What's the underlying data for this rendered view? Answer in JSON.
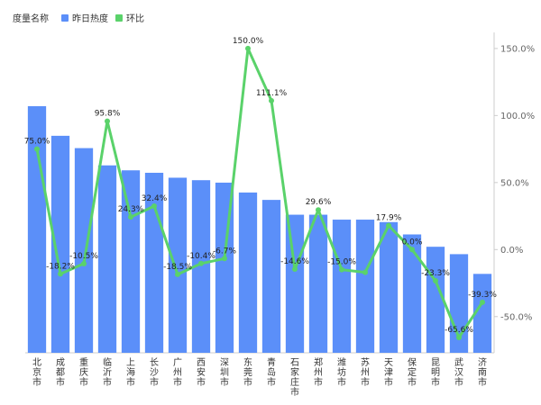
{
  "chart_data": {
    "type": "bar",
    "legend": {
      "title": "度量名称",
      "placement": "top-left",
      "entries": [
        {
          "name": "昨日热度",
          "color": "#5b8ff9",
          "type": "bar"
        },
        {
          "name": "环比",
          "color": "#5ad26a",
          "type": "line"
        }
      ]
    },
    "categories": [
      "北京市",
      "成都市",
      "重庆市",
      "临沂市",
      "上海市",
      "长沙市",
      "广州市",
      "西安市",
      "深圳市",
      "东莞市",
      "青岛市",
      "石家庄市",
      "郑州市",
      "潍坊市",
      "苏州市",
      "天津市",
      "保定市",
      "昆明市",
      "武汉市",
      "济南市"
    ],
    "series": [
      {
        "name": "昨日热度",
        "type": "bar",
        "color": "#5b8ff9",
        "values": [
          100,
          88,
          83,
          76,
          74,
          73,
          71,
          70,
          69,
          65,
          62,
          56,
          56,
          54,
          54,
          53,
          48,
          43,
          40,
          32
        ]
      },
      {
        "name": "环比",
        "type": "line",
        "color": "#5ad26a",
        "values": [
          75.0,
          -18.2,
          -10.5,
          95.8,
          24.3,
          32.4,
          -18.5,
          -10.4,
          -6.7,
          150.0,
          111.1,
          -14.6,
          29.6,
          -15.0,
          -17.0,
          17.9,
          0.0,
          -23.3,
          -65.6,
          -39.3
        ],
        "labels": [
          "75.0%",
          "-18.2%",
          "-10.5%",
          "95.8%",
          "24.3%",
          "32.4%",
          "-18.5%",
          "-10.4%",
          "-6.7%",
          "150.0%",
          "111.1%",
          "-14.6%",
          "29.6%",
          "-15.0%",
          "",
          "17.9%",
          "0.0%",
          "-23.3%",
          "-65.6%",
          "-39.3%"
        ]
      }
    ],
    "y_right": {
      "ticks": [
        150,
        100,
        50,
        0,
        -50
      ],
      "tick_labels": [
        "150.0%",
        "100.0%",
        "50.0%",
        "0.0%",
        "-50.0%"
      ],
      "range": [
        -77,
        162
      ]
    },
    "bar_range": [
      0,
      100
    ],
    "grid": false
  }
}
